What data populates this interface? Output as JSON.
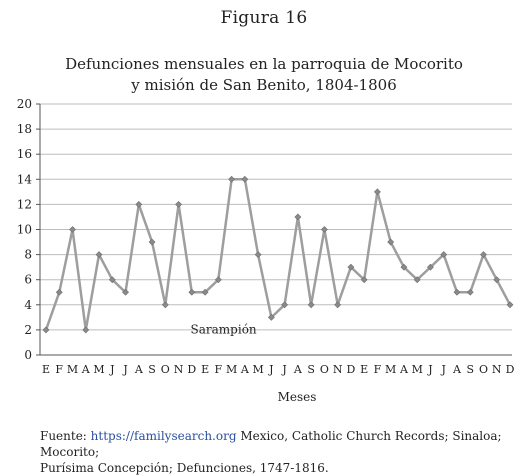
{
  "figure_label": "Figura 16",
  "chart_data": {
    "type": "line",
    "title_line1": "Defunciones mensuales en la parroquia de Mocorito",
    "title_line2": "y misión de San Benito, 1804-1806",
    "xlabel": "Meses",
    "ylabel": "",
    "ylim": [
      0,
      20
    ],
    "yticks": [
      "0",
      "2",
      "4",
      "6",
      "8",
      "10",
      "12",
      "14",
      "16",
      "18",
      "20"
    ],
    "categories": [
      "E",
      "F",
      "M",
      "A",
      "M",
      "J",
      "J",
      "A",
      "S",
      "O",
      "N",
      "D",
      "E",
      "F",
      "M",
      "A",
      "M",
      "J",
      "J",
      "A",
      "S",
      "O",
      "N",
      "D",
      "E",
      "F",
      "M",
      "A",
      "M",
      "J",
      "J",
      "A",
      "S",
      "O",
      "N",
      "D"
    ],
    "series": [
      {
        "values": [
          2,
          5,
          10,
          2,
          8,
          6,
          5,
          12,
          9,
          4,
          12,
          5,
          5,
          6,
          14,
          14,
          8,
          3,
          4,
          11,
          4,
          10,
          4,
          7,
          6,
          13,
          9,
          7,
          6,
          7,
          8,
          5,
          5,
          8,
          6,
          4
        ]
      }
    ],
    "annotations": [
      {
        "text": "Sarampión",
        "x_index": 14,
        "y": 1
      }
    ],
    "grid": true,
    "legend": "none",
    "colors": {
      "line": "#9e9e9e",
      "marker": "#8a8a8a",
      "grid": "#bdbdbd",
      "axis": "#555555"
    }
  },
  "source": {
    "prefix": "Fuente: ",
    "link": "https://familysearch.org",
    "rest": " Mexico, Catholic Church Records; Sinaloa; Mocorito;",
    "line2": "Purísima Concepción; Defunciones, 1747-1816."
  }
}
